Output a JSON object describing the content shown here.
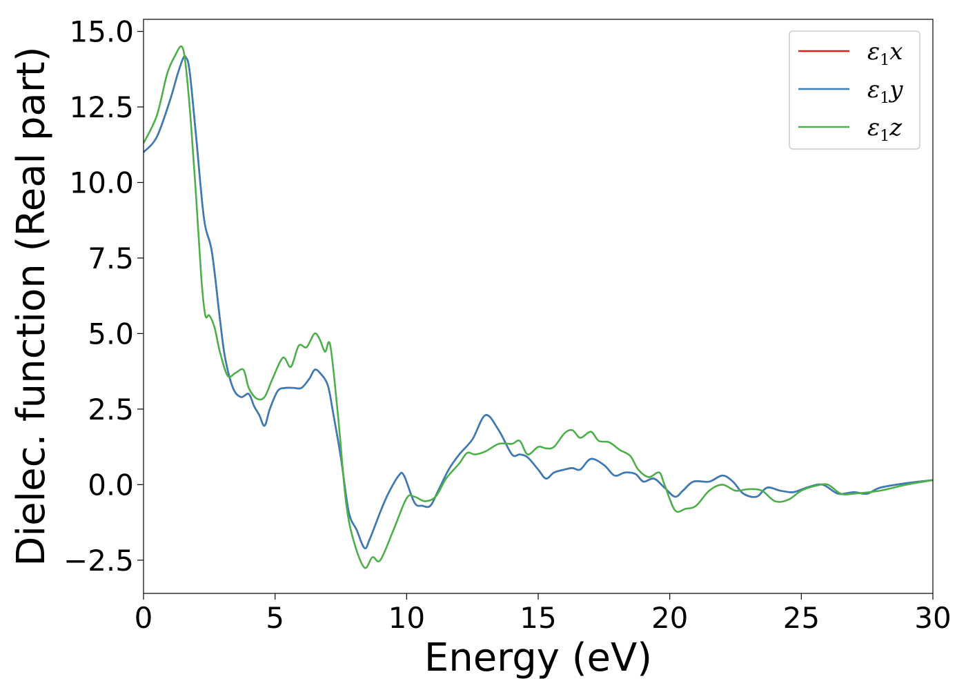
{
  "chart_data": {
    "type": "line",
    "xlabel": "Energy (eV)",
    "ylabel": "Dielec. function (Real part)",
    "xlim": [
      0,
      30
    ],
    "ylim": [
      -3.6,
      15.4
    ],
    "xticks": [
      0,
      5,
      10,
      15,
      20,
      25,
      30
    ],
    "xtick_labels": [
      "0",
      "5",
      "10",
      "15",
      "20",
      "25",
      "30"
    ],
    "yticks": [
      15.0,
      12.5,
      10.0,
      7.5,
      5.0,
      2.5,
      0.0,
      -2.5
    ],
    "ytick_labels": [
      "15.0",
      "12.5",
      "10.0",
      "7.5",
      "5.0",
      "2.5",
      "0.0",
      "−2.5"
    ],
    "grid": false,
    "legend_position": "top-right",
    "series": [
      {
        "name": "ε1x",
        "symbol": "ε",
        "sub": "1",
        "axis": "x",
        "color": "#e41a1c",
        "x": [
          0,
          0.5,
          1,
          1.3,
          1.5,
          1.6,
          1.75,
          2,
          2.3,
          2.6,
          2.9,
          3.1,
          3.4,
          3.7,
          4,
          4.2,
          4.4,
          4.6,
          4.8,
          5.1,
          5.4,
          5.7,
          6,
          6.3,
          6.5,
          6.7,
          7,
          7.2,
          7.5,
          7.8,
          8.1,
          8.4,
          8.6,
          9,
          9.3,
          9.7,
          9.9,
          10.3,
          10.6,
          10.9,
          11.2,
          11.6,
          12,
          12.5,
          13,
          13.5,
          14,
          14.3,
          14.6,
          15,
          15.3,
          15.6,
          16,
          16.3,
          16.6,
          17,
          17.5,
          17.9,
          18.3,
          18.7,
          19,
          19.4,
          19.8,
          20.2,
          20.5,
          20.9,
          21.5,
          22,
          22.4,
          22.8,
          23.3,
          23.7,
          24.2,
          24.7,
          25.2,
          25.8,
          26.4,
          27,
          27.5,
          28,
          29,
          30
        ],
        "y": [
          11.0,
          11.5,
          12.7,
          13.6,
          14.1,
          14.15,
          13.7,
          11.5,
          8.8,
          7.7,
          5.5,
          4.2,
          3.2,
          2.9,
          3.0,
          2.6,
          2.3,
          1.95,
          2.5,
          3.1,
          3.2,
          3.2,
          3.2,
          3.5,
          3.8,
          3.7,
          3.3,
          2.4,
          0.9,
          -0.9,
          -1.5,
          -2.1,
          -1.8,
          -0.9,
          -0.3,
          0.3,
          0.3,
          -0.6,
          -0.7,
          -0.7,
          -0.2,
          0.5,
          1.0,
          1.5,
          2.3,
          1.8,
          1.0,
          1.0,
          0.9,
          0.5,
          0.2,
          0.4,
          0.5,
          0.55,
          0.5,
          0.85,
          0.65,
          0.3,
          0.4,
          0.35,
          0.1,
          0.2,
          -0.1,
          -0.4,
          -0.2,
          0.1,
          0.1,
          0.3,
          0.1,
          -0.3,
          -0.4,
          -0.1,
          -0.2,
          -0.25,
          -0.1,
          0.0,
          -0.3,
          -0.25,
          -0.3,
          -0.1,
          0.05,
          0.15
        ]
      },
      {
        "name": "ε1y",
        "symbol": "ε",
        "sub": "1",
        "axis": "y",
        "color": "#377eb8",
        "x": [
          0,
          0.5,
          1,
          1.3,
          1.5,
          1.6,
          1.75,
          2,
          2.3,
          2.6,
          2.9,
          3.1,
          3.4,
          3.7,
          4,
          4.2,
          4.4,
          4.6,
          4.8,
          5.1,
          5.4,
          5.7,
          6,
          6.3,
          6.5,
          6.7,
          7,
          7.2,
          7.5,
          7.8,
          8.1,
          8.4,
          8.6,
          9,
          9.3,
          9.7,
          9.9,
          10.3,
          10.6,
          10.9,
          11.2,
          11.6,
          12,
          12.5,
          13,
          13.5,
          14,
          14.3,
          14.6,
          15,
          15.3,
          15.6,
          16,
          16.3,
          16.6,
          17,
          17.5,
          17.9,
          18.3,
          18.7,
          19,
          19.4,
          19.8,
          20.2,
          20.5,
          20.9,
          21.5,
          22,
          22.4,
          22.8,
          23.3,
          23.7,
          24.2,
          24.7,
          25.2,
          25.8,
          26.4,
          27,
          27.5,
          28,
          29,
          30
        ],
        "y": [
          11.0,
          11.5,
          12.7,
          13.6,
          14.1,
          14.15,
          13.7,
          11.5,
          8.8,
          7.7,
          5.5,
          4.2,
          3.2,
          2.9,
          3.0,
          2.6,
          2.3,
          1.95,
          2.5,
          3.1,
          3.2,
          3.2,
          3.2,
          3.5,
          3.8,
          3.7,
          3.3,
          2.4,
          0.9,
          -0.9,
          -1.5,
          -2.1,
          -1.8,
          -0.9,
          -0.3,
          0.3,
          0.3,
          -0.6,
          -0.7,
          -0.7,
          -0.2,
          0.5,
          1.0,
          1.5,
          2.3,
          1.8,
          1.0,
          1.0,
          0.9,
          0.5,
          0.2,
          0.4,
          0.5,
          0.55,
          0.5,
          0.85,
          0.65,
          0.3,
          0.4,
          0.35,
          0.1,
          0.2,
          -0.1,
          -0.4,
          -0.2,
          0.1,
          0.1,
          0.3,
          0.1,
          -0.3,
          -0.4,
          -0.1,
          -0.2,
          -0.25,
          -0.1,
          0.0,
          -0.3,
          -0.25,
          -0.3,
          -0.1,
          0.05,
          0.15
        ]
      },
      {
        "name": "ε1z",
        "symbol": "ε",
        "sub": "1",
        "axis": "z",
        "color": "#4daf4a",
        "x": [
          0,
          0.5,
          0.9,
          1.2,
          1.45,
          1.6,
          1.8,
          2,
          2.2,
          2.35,
          2.5,
          2.7,
          2.9,
          3.2,
          3.5,
          3.8,
          4,
          4.3,
          4.6,
          4.9,
          5.3,
          5.6,
          5.9,
          6.2,
          6.5,
          6.7,
          6.9,
          7.1,
          7.4,
          7.7,
          8,
          8.4,
          8.7,
          9,
          9.5,
          10,
          10.3,
          10.7,
          11.1,
          11.5,
          12,
          12.3,
          12.6,
          13,
          13.5,
          14,
          14.3,
          14.6,
          15,
          15.3,
          15.6,
          16,
          16.3,
          16.6,
          17,
          17.3,
          17.7,
          18.1,
          18.5,
          18.8,
          19.2,
          19.6,
          19.8,
          20.2,
          20.6,
          21,
          21.5,
          22,
          22.5,
          23,
          23.5,
          24,
          24.5,
          25,
          25.5,
          26,
          26.5,
          27,
          28,
          29,
          30
        ],
        "y": [
          11.3,
          12.2,
          13.6,
          14.2,
          14.5,
          13.9,
          12.0,
          9.5,
          6.8,
          5.6,
          5.6,
          5.2,
          4.4,
          3.6,
          3.7,
          3.8,
          3.2,
          2.85,
          2.9,
          3.5,
          4.2,
          3.9,
          4.6,
          4.55,
          5.0,
          4.8,
          4.4,
          4.6,
          2.2,
          -0.6,
          -1.9,
          -2.75,
          -2.4,
          -2.5,
          -1.5,
          -0.45,
          -0.4,
          -0.55,
          -0.4,
          0.2,
          0.7,
          1.05,
          1.0,
          1.1,
          1.35,
          1.35,
          1.45,
          1.0,
          1.25,
          1.2,
          1.25,
          1.7,
          1.8,
          1.55,
          1.75,
          1.45,
          1.4,
          1.15,
          0.95,
          0.5,
          0.25,
          0.4,
          0.0,
          -0.85,
          -0.8,
          -0.7,
          -0.2,
          0.0,
          -0.2,
          -0.15,
          -0.2,
          -0.55,
          -0.5,
          -0.2,
          -0.05,
          0.0,
          -0.3,
          -0.3,
          -0.2,
          0.0,
          0.15
        ]
      }
    ]
  }
}
